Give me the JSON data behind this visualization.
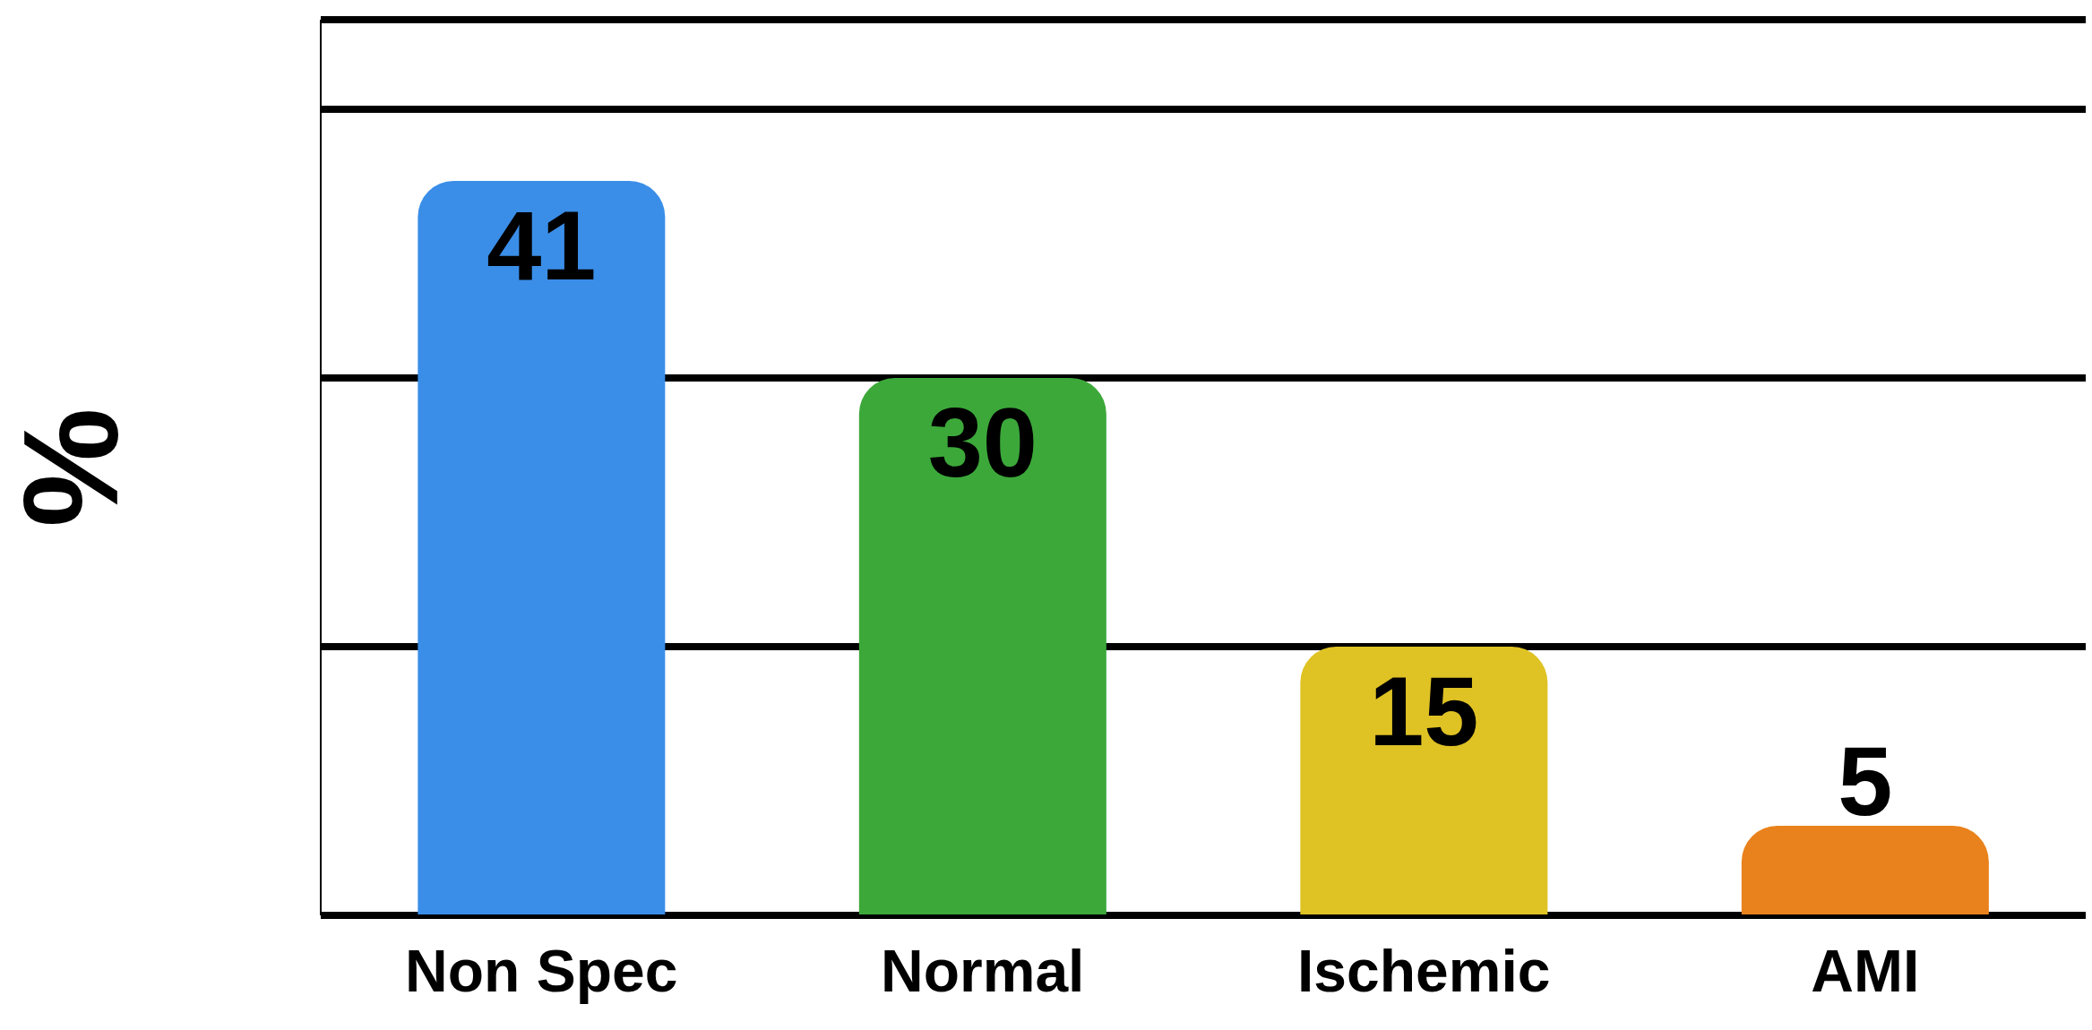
{
  "chart_data": {
    "type": "bar",
    "ylabel": "%",
    "categories": [
      "Non Spec",
      "Normal",
      "Ischemic",
      "AMI"
    ],
    "values": [
      41,
      30,
      15,
      5
    ],
    "colors": [
      "#3a8ee8",
      "#3ca83a",
      "#dfc224",
      "#e9821c"
    ],
    "ylim": [
      0,
      50
    ],
    "tick_labels": "x",
    "grid": "y",
    "data_labels": true
  }
}
